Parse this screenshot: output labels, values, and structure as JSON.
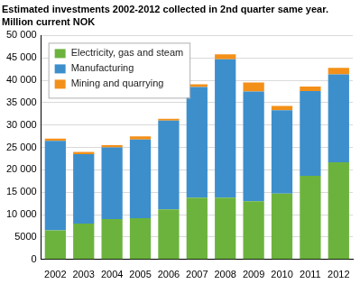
{
  "chart_data": {
    "type": "bar",
    "title": "Estimated investments 2002-2012 collected in 2nd quarter same year.",
    "subtitle": "Million current NOK",
    "categories": [
      "2002",
      "2003",
      "2004",
      "2005",
      "2006",
      "2007",
      "2008",
      "2009",
      "2010",
      "2011",
      "2012"
    ],
    "series": [
      {
        "name": "Electricity, gas and steam",
        "color": "#6cb33e",
        "values": [
          6500,
          8000,
          9000,
          9200,
          11200,
          13800,
          13800,
          13000,
          14700,
          18700,
          21700
        ]
      },
      {
        "name": "Manufacturing",
        "color": "#3d8fcc",
        "values": [
          20000,
          15500,
          16000,
          17600,
          19800,
          24700,
          30900,
          24500,
          18600,
          18900,
          19600
        ]
      },
      {
        "name": "Mining and quarrying",
        "color": "#f39019",
        "values": [
          500,
          500,
          500,
          700,
          400,
          600,
          1100,
          2000,
          1000,
          1000,
          1500
        ]
      }
    ],
    "stacked": true,
    "ylim": [
      0,
      50000
    ],
    "yticks": [
      0,
      {
        "value": 5000,
        "label": "5000"
      },
      {
        "value": 10000,
        "label": "10 000"
      },
      {
        "value": 15000,
        "label": "15 000"
      },
      {
        "value": 20000,
        "label": "20 000"
      },
      {
        "value": 25000,
        "label": "25 000"
      },
      {
        "value": 30000,
        "label": "30 000"
      },
      {
        "value": 35000,
        "label": "35 000"
      },
      {
        "value": 40000,
        "label": "40 000"
      },
      {
        "value": 45000,
        "label": "45 000"
      },
      {
        "value": 50000,
        "label": "50 000"
      }
    ],
    "grid": true,
    "legend": "top-left"
  }
}
